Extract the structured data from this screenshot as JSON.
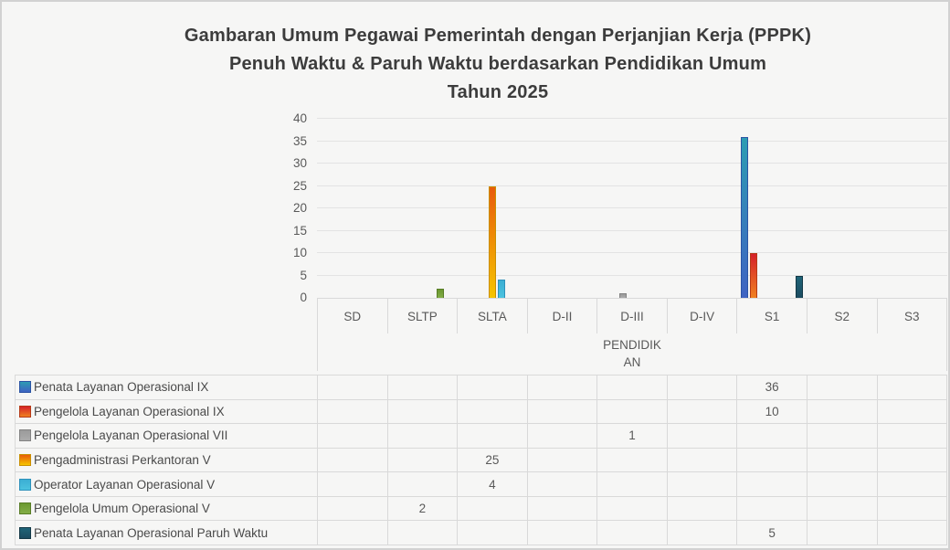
{
  "title": {
    "line1": "Gambaran Umum Pegawai Pemerintah dengan Perjanjian Kerja (PPPK)",
    "line2": "Penuh Waktu & Paruh Waktu berdasarkan Pendidikan Umum",
    "line3": "Tahun 2025"
  },
  "chart_data": {
    "type": "bar",
    "title": "Gambaran Umum Pegawai Pemerintah dengan Perjanjian Kerja (PPPK) Penuh Waktu & Paruh Waktu berdasarkan Pendidikan Umum Tahun 2025",
    "xlabel": "PENDIDIKAN",
    "xlabel_lines": [
      "PENDIDIK",
      "AN"
    ],
    "ylabel": "",
    "ylim": [
      0,
      40
    ],
    "yticks": [
      0,
      5,
      10,
      15,
      20,
      25,
      30,
      35,
      40
    ],
    "grid": true,
    "legend_position": "table-left",
    "categories": [
      "SD",
      "SLTP",
      "SLTA",
      "D-II",
      "D-III",
      "D-IV",
      "S1",
      "S2",
      "S3"
    ],
    "series": [
      {
        "name": "Penata Layanan Operasional IX",
        "values": [
          0,
          0,
          0,
          0,
          0,
          0,
          36,
          0,
          0
        ],
        "color": "#2e75b6",
        "gradient_bottom": "#3f63c2",
        "gradient_top": "#2d9cb3",
        "border": "#2b54a4"
      },
      {
        "name": "Pengelola Layanan Operasional IX",
        "values": [
          0,
          0,
          0,
          0,
          0,
          0,
          10,
          0,
          0
        ],
        "color": "#e04b23",
        "gradient_bottom": "#f08121",
        "gradient_top": "#d52129",
        "border": "#b53a17"
      },
      {
        "name": "Pengelola Layanan Operasional VII",
        "values": [
          0,
          0,
          0,
          0,
          1,
          0,
          0,
          0,
          0
        ],
        "color": "#a6a6a6",
        "gradient_bottom": "#ababab",
        "gradient_top": "#9b9b9b",
        "border": "#828282"
      },
      {
        "name": "Pengadministrasi Perkantoran V",
        "values": [
          0,
          0,
          25,
          0,
          0,
          0,
          0,
          0,
          0
        ],
        "color": "#ffb500",
        "gradient_bottom": "#f6c500",
        "gradient_top": "#e85b0b",
        "border": "#c98f00"
      },
      {
        "name": "Operator Layanan Operasional V",
        "values": [
          0,
          0,
          4,
          0,
          0,
          0,
          0,
          0,
          0
        ],
        "color": "#4bc0de",
        "gradient_bottom": "#4cc3df",
        "gradient_top": "#3baed3",
        "border": "#2d91bb"
      },
      {
        "name": "Pengelola Umum Operasional V",
        "values": [
          0,
          2,
          0,
          0,
          0,
          0,
          0,
          0,
          0
        ],
        "color": "#77a033",
        "gradient_bottom": "#83ae47",
        "gradient_top": "#6b9830",
        "border": "#587d26"
      },
      {
        "name": "Penata Layanan Operasional Paruh Waktu",
        "values": [
          0,
          0,
          0,
          0,
          0,
          0,
          5,
          0,
          0
        ],
        "color": "#1f4e5f",
        "gradient_bottom": "#1b4b60",
        "gradient_top": "#1f6478",
        "border": "#133846"
      }
    ]
  },
  "colors": {
    "background": "#f6f6f5",
    "outer_border": "#d2d2d2",
    "gridline": "#e3e3e3",
    "cell_border": "#d9d9d9",
    "title_text": "#3c3c3c",
    "axis_text": "#595959"
  }
}
